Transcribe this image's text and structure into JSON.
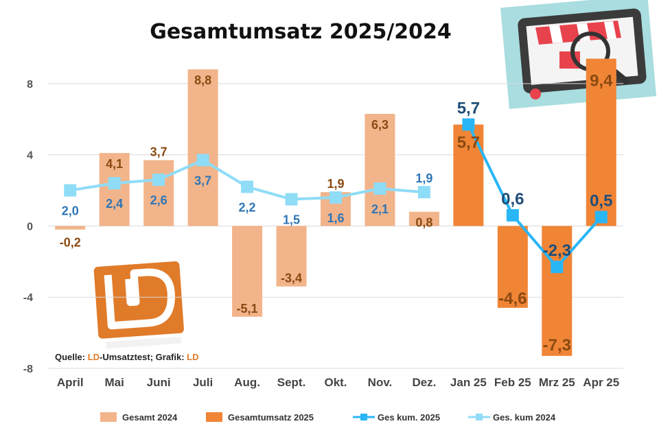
{
  "chart_data": {
    "type": "bar",
    "title": "Gesamtumsatz 2025/2024",
    "categories": [
      "April",
      "Mai",
      "Juni",
      "Juli",
      "Aug.",
      "Sept.",
      "Okt.",
      "Nov.",
      "Dez.",
      "Jan 25",
      "Feb 25",
      "Mrz 25",
      "Apr 25"
    ],
    "ylim": [
      -8,
      10
    ],
    "yticks": [
      -8,
      -4,
      0,
      4,
      8
    ],
    "ytick_labels": [
      "-8",
      "-4",
      "0",
      "4",
      "8"
    ],
    "grid": true,
    "legend_position": "bottom",
    "series": [
      {
        "name": "Gesamt 2024",
        "kind": "bar",
        "color": "#f2b48a",
        "label_color": "#8b4a12",
        "values": [
          -0.2,
          4.1,
          3.7,
          8.8,
          -5.1,
          -3.4,
          1.9,
          6.3,
          0.8,
          null,
          null,
          null,
          null
        ],
        "labels": [
          "-0,2",
          "4,1",
          "3,7",
          "8,8",
          "-5,1",
          "-3,4",
          "1,9",
          "6,3",
          "0,8",
          "",
          "",
          "",
          ""
        ]
      },
      {
        "name": "Gesamtumsatz 2025",
        "kind": "bar",
        "color": "#f08536",
        "label_color": "#8b4a12",
        "values": [
          null,
          null,
          null,
          null,
          null,
          null,
          null,
          null,
          null,
          5.7,
          -4.6,
          -7.3,
          9.4
        ],
        "labels": [
          "",
          "",
          "",
          "",
          "",
          "",
          "",
          "",
          "",
          "5,7",
          "-4,6",
          "-7,3",
          "9,4"
        ]
      },
      {
        "name": "Ges kum. 2025",
        "kind": "line",
        "color": "#29b6f6",
        "label_color": "#1f4e79",
        "values": [
          null,
          null,
          null,
          null,
          null,
          null,
          null,
          null,
          null,
          5.7,
          0.6,
          -2.3,
          0.5
        ],
        "labels": [
          "",
          "",
          "",
          "",
          "",
          "",
          "",
          "",
          "",
          "5,7",
          "0,6",
          "-2,3",
          "0,5"
        ]
      },
      {
        "name": "Ges. kum 2024",
        "kind": "line",
        "color": "#8fdcf7",
        "label_color": "#2e75b6",
        "values": [
          2.0,
          2.4,
          2.6,
          3.7,
          2.2,
          1.5,
          1.6,
          2.1,
          1.9,
          null,
          null,
          null,
          null
        ],
        "labels": [
          "2,0",
          "2,4",
          "2,6",
          "3,7",
          "2,2",
          "1,5",
          "1,6",
          "2,1",
          "1,9",
          "",
          "",
          "",
          ""
        ]
      }
    ],
    "source": {
      "prefix": "Quelle: ",
      "highlight1": "LD",
      "middle": "-Umsatztest; Grafik: ",
      "highlight2": "LD"
    },
    "logo_glyph": "D",
    "colors": {
      "grid": "#d9d9d9",
      "logo": "#e07b2a"
    }
  }
}
